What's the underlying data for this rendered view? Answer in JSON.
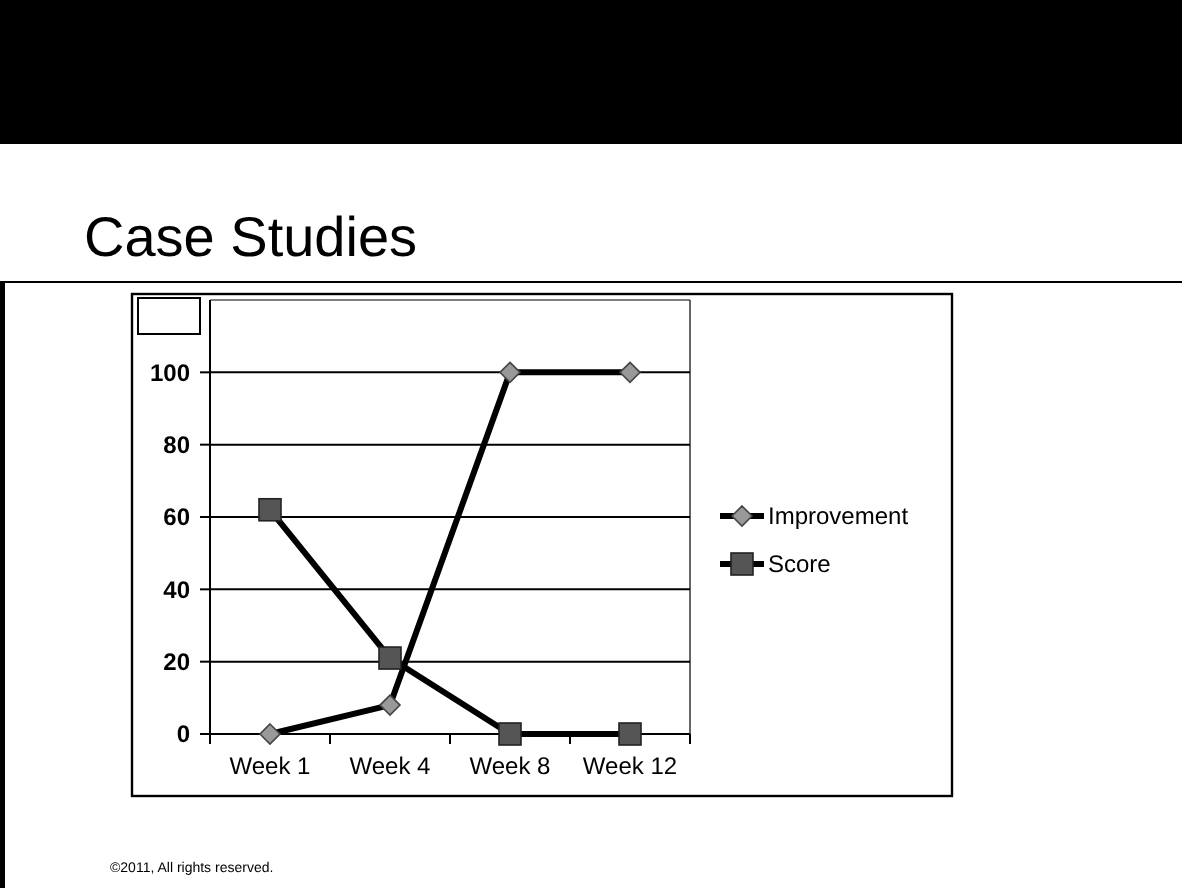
{
  "chart_data": {
    "type": "line",
    "title": "Case Studies",
    "categories": [
      "Week 1",
      "Week 4",
      "Week 8",
      "Week 12"
    ],
    "series": [
      {
        "name": "Improvement",
        "color": "#000000",
        "values": [
          0,
          8,
          100,
          100
        ],
        "marker": "diamond"
      },
      {
        "name": "Score",
        "color": "#000000",
        "values": [
          62,
          21,
          0,
          0
        ],
        "marker": "square"
      }
    ],
    "ylim": [
      0,
      120
    ],
    "yticks": [
      0,
      20,
      40,
      60,
      80,
      100
    ],
    "grid": "y",
    "legend": "right",
    "annotations": [
      "©2011, All rights reserved."
    ]
  }
}
